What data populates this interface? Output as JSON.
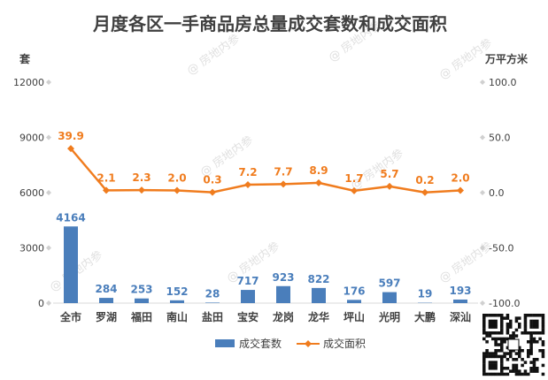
{
  "chart_data": {
    "type": "bar",
    "title": "月度各区一手商品房总量成交套数和成交面积",
    "categories": [
      "全市",
      "罗湖",
      "福田",
      "南山",
      "盐田",
      "宝安",
      "龙岗",
      "龙华",
      "坪山",
      "光明",
      "大鹏",
      "深汕"
    ],
    "left_axis": {
      "unit": "套",
      "ylim": [
        0,
        12000
      ],
      "ticks": [
        "0",
        "3000",
        "6000",
        "9000",
        "12000"
      ],
      "tick_values": [
        0,
        3000,
        6000,
        9000,
        12000
      ]
    },
    "right_axis": {
      "unit": "万平方米",
      "ylim": [
        -100,
        100
      ],
      "ticks": [
        "-100.0",
        "-50.0",
        "0.0",
        "50.0",
        "100.0"
      ],
      "tick_values": [
        -100,
        -50,
        0,
        50,
        100
      ]
    },
    "series": [
      {
        "name": "成交套数",
        "type": "bar",
        "axis": "left",
        "color": "#4a7ebb",
        "values": [
          4164,
          284,
          253,
          152,
          28,
          717,
          923,
          822,
          176,
          597,
          19,
          193
        ],
        "labels": [
          "4164",
          "284",
          "253",
          "152",
          "28",
          "717",
          "923",
          "822",
          "176",
          "597",
          "19",
          "193"
        ]
      },
      {
        "name": "成交面积",
        "type": "line",
        "axis": "right",
        "color": "#f07c1e",
        "values": [
          39.9,
          2.1,
          2.3,
          2.0,
          0.3,
          7.2,
          7.7,
          8.9,
          1.7,
          5.7,
          0.2,
          2.0
        ],
        "labels": [
          "39.9",
          "2.1",
          "2.3",
          "2.0",
          "0.3",
          "7.2",
          "7.7",
          "8.9",
          "1.7",
          "5.7",
          "0.2",
          "2.0"
        ]
      }
    ],
    "legend_position": "bottom",
    "grid": false
  },
  "watermark": "房地内参",
  "qr_code": "qr-code"
}
